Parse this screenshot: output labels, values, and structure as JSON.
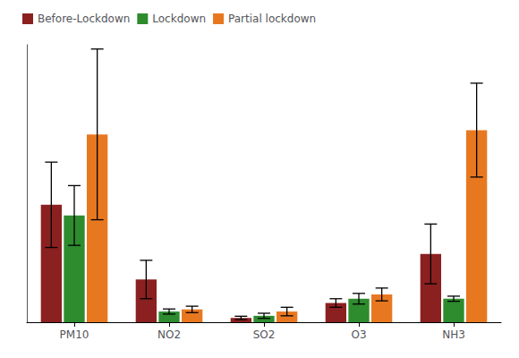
{
  "chart_data": {
    "type": "bar",
    "categories": [
      "PM10",
      "NO2",
      "SO2",
      "O3",
      "NH3"
    ],
    "series": [
      {
        "name": "Before-Lockdown",
        "color": "#8B2020",
        "values": [
          55,
          20,
          2,
          9,
          32
        ],
        "errors": [
          20,
          9,
          0.8,
          2,
          14
        ]
      },
      {
        "name": "Lockdown",
        "color": "#2E8B2E",
        "values": [
          50,
          5,
          3,
          11,
          11
        ],
        "errors": [
          14,
          1.2,
          1.2,
          2.5,
          1.2
        ]
      },
      {
        "name": "Partial lockdown",
        "color": "#E87820",
        "values": [
          88,
          6,
          5,
          13,
          90
        ],
        "errors": [
          40,
          1.5,
          2,
          3,
          22
        ]
      }
    ],
    "ylim": [
      0,
      130
    ],
    "grid": false,
    "legend": "upper left",
    "tick_labels": "x"
  }
}
